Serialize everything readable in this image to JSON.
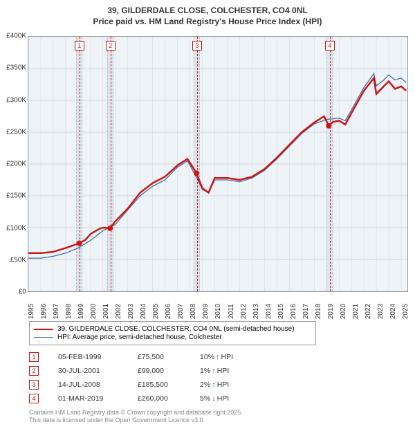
{
  "title_line1": "39, GILDERDALE CLOSE, COLCHESTER, CO4 0NL",
  "title_line2": "Price paid vs. HM Land Registry's House Price Index (HPI)",
  "chart": {
    "type": "line",
    "background_color": "#eef3f7",
    "band_color": "#dbe7ef",
    "grid_color": "#cfd8df",
    "border_color": "#999999",
    "x_min": 1995,
    "x_max": 2025.5,
    "x_ticks": [
      1995,
      1996,
      1997,
      1998,
      1999,
      2000,
      2001,
      2002,
      2003,
      2004,
      2005,
      2006,
      2007,
      2008,
      2009,
      2010,
      2011,
      2012,
      2013,
      2014,
      2015,
      2016,
      2017,
      2018,
      2019,
      2020,
      2021,
      2022,
      2023,
      2024,
      2025
    ],
    "y_min": 0,
    "y_max": 400000,
    "y_ticks": [
      0,
      50000,
      100000,
      150000,
      200000,
      250000,
      300000,
      350000,
      400000
    ],
    "y_tick_labels": [
      "£0",
      "£50K",
      "£100K",
      "£150K",
      "£200K",
      "£250K",
      "£300K",
      "£350K",
      "£400K"
    ],
    "series_red": {
      "label": "39, GILDERDALE CLOSE, COLCHESTER, CO4 0NL (semi-detached house)",
      "color": "#d01414",
      "width": 2.5,
      "points": [
        [
          1995,
          60000
        ],
        [
          1996,
          60000
        ],
        [
          1997,
          62000
        ],
        [
          1998,
          68000
        ],
        [
          1999.1,
          75500
        ],
        [
          1999.6,
          81000
        ],
        [
          2000,
          90000
        ],
        [
          2000.7,
          98000
        ],
        [
          2001,
          100000
        ],
        [
          2001.58,
          99000
        ],
        [
          2002,
          110000
        ],
        [
          2003,
          130000
        ],
        [
          2004,
          155000
        ],
        [
          2005,
          170000
        ],
        [
          2006,
          180000
        ],
        [
          2007,
          198000
        ],
        [
          2007.8,
          208000
        ],
        [
          2008,
          202000
        ],
        [
          2008.53,
          185500
        ],
        [
          2009,
          162000
        ],
        [
          2009.5,
          155000
        ],
        [
          2010,
          178000
        ],
        [
          2011,
          178000
        ],
        [
          2012,
          175000
        ],
        [
          2013,
          180000
        ],
        [
          2014,
          192000
        ],
        [
          2015,
          210000
        ],
        [
          2016,
          230000
        ],
        [
          2017,
          250000
        ],
        [
          2018,
          265000
        ],
        [
          2018.8,
          275000
        ],
        [
          2019.17,
          260000
        ],
        [
          2019.5,
          266000
        ],
        [
          2020,
          268000
        ],
        [
          2020.5,
          262000
        ],
        [
          2021,
          280000
        ],
        [
          2022,
          315000
        ],
        [
          2022.8,
          335000
        ],
        [
          2023,
          310000
        ],
        [
          2023.5,
          320000
        ],
        [
          2024,
          330000
        ],
        [
          2024.5,
          318000
        ],
        [
          2025,
          322000
        ],
        [
          2025.4,
          315000
        ]
      ],
      "sale_dots": [
        [
          1999.1,
          75500
        ],
        [
          2001.58,
          99000
        ],
        [
          2008.53,
          185500
        ],
        [
          2019.17,
          260000
        ]
      ]
    },
    "series_blue": {
      "label": "HPI: Average price, semi-detached house, Colchester",
      "color": "#3b6ea5",
      "width": 1.3,
      "points": [
        [
          1995,
          52000
        ],
        [
          1996,
          52000
        ],
        [
          1997,
          55000
        ],
        [
          1998,
          60000
        ],
        [
          1999,
          68000
        ],
        [
          2000,
          80000
        ],
        [
          2001,
          95000
        ],
        [
          2002,
          105000
        ],
        [
          2003,
          128000
        ],
        [
          2004,
          150000
        ],
        [
          2005,
          165000
        ],
        [
          2006,
          175000
        ],
        [
          2007,
          195000
        ],
        [
          2007.8,
          205000
        ],
        [
          2008,
          198000
        ],
        [
          2008.5,
          180000
        ],
        [
          2009,
          160000
        ],
        [
          2009.5,
          155000
        ],
        [
          2010,
          175000
        ],
        [
          2011,
          175000
        ],
        [
          2012,
          172000
        ],
        [
          2013,
          178000
        ],
        [
          2014,
          190000
        ],
        [
          2015,
          208000
        ],
        [
          2016,
          228000
        ],
        [
          2017,
          248000
        ],
        [
          2018,
          263000
        ],
        [
          2019,
          270000
        ],
        [
          2020,
          272000
        ],
        [
          2020.5,
          268000
        ],
        [
          2021,
          285000
        ],
        [
          2022,
          320000
        ],
        [
          2022.8,
          342000
        ],
        [
          2023,
          323000
        ],
        [
          2023.5,
          330000
        ],
        [
          2024,
          340000
        ],
        [
          2024.5,
          332000
        ],
        [
          2025,
          335000
        ],
        [
          2025.4,
          328000
        ]
      ]
    },
    "events": [
      {
        "n": "1",
        "x": 1999.1,
        "band_width": 0.5
      },
      {
        "n": "2",
        "x": 2001.58,
        "band_width": 0.5
      },
      {
        "n": "3",
        "x": 2008.53,
        "band_width": 0.5
      },
      {
        "n": "4",
        "x": 2019.17,
        "band_width": 0.5
      }
    ]
  },
  "legend": {
    "s1": "39, GILDERDALE CLOSE, COLCHESTER, CO4 0NL (semi-detached house)",
    "s2": "HPI: Average price, semi-detached house, Colchester"
  },
  "markers": [
    {
      "n": "1",
      "date": "05-FEB-1999",
      "price": "£75,500",
      "pct": "10%",
      "dir": "up",
      "suffix": "HPI"
    },
    {
      "n": "2",
      "date": "30-JUL-2001",
      "price": "£99,000",
      "pct": "1%",
      "dir": "up",
      "suffix": "HPI"
    },
    {
      "n": "3",
      "date": "14-JUL-2008",
      "price": "£185,500",
      "pct": "2%",
      "dir": "up",
      "suffix": "HPI"
    },
    {
      "n": "4",
      "date": "01-MAR-2019",
      "price": "£260,000",
      "pct": "5%",
      "dir": "down",
      "suffix": "HPI"
    }
  ],
  "footer_line1": "Contains HM Land Registry data © Crown copyright and database right 2025.",
  "footer_line2": "This data is licensed under the Open Government Licence v3.0.",
  "colors": {
    "up_arrow": "#2a8a2a",
    "down_arrow": "#d01414"
  }
}
